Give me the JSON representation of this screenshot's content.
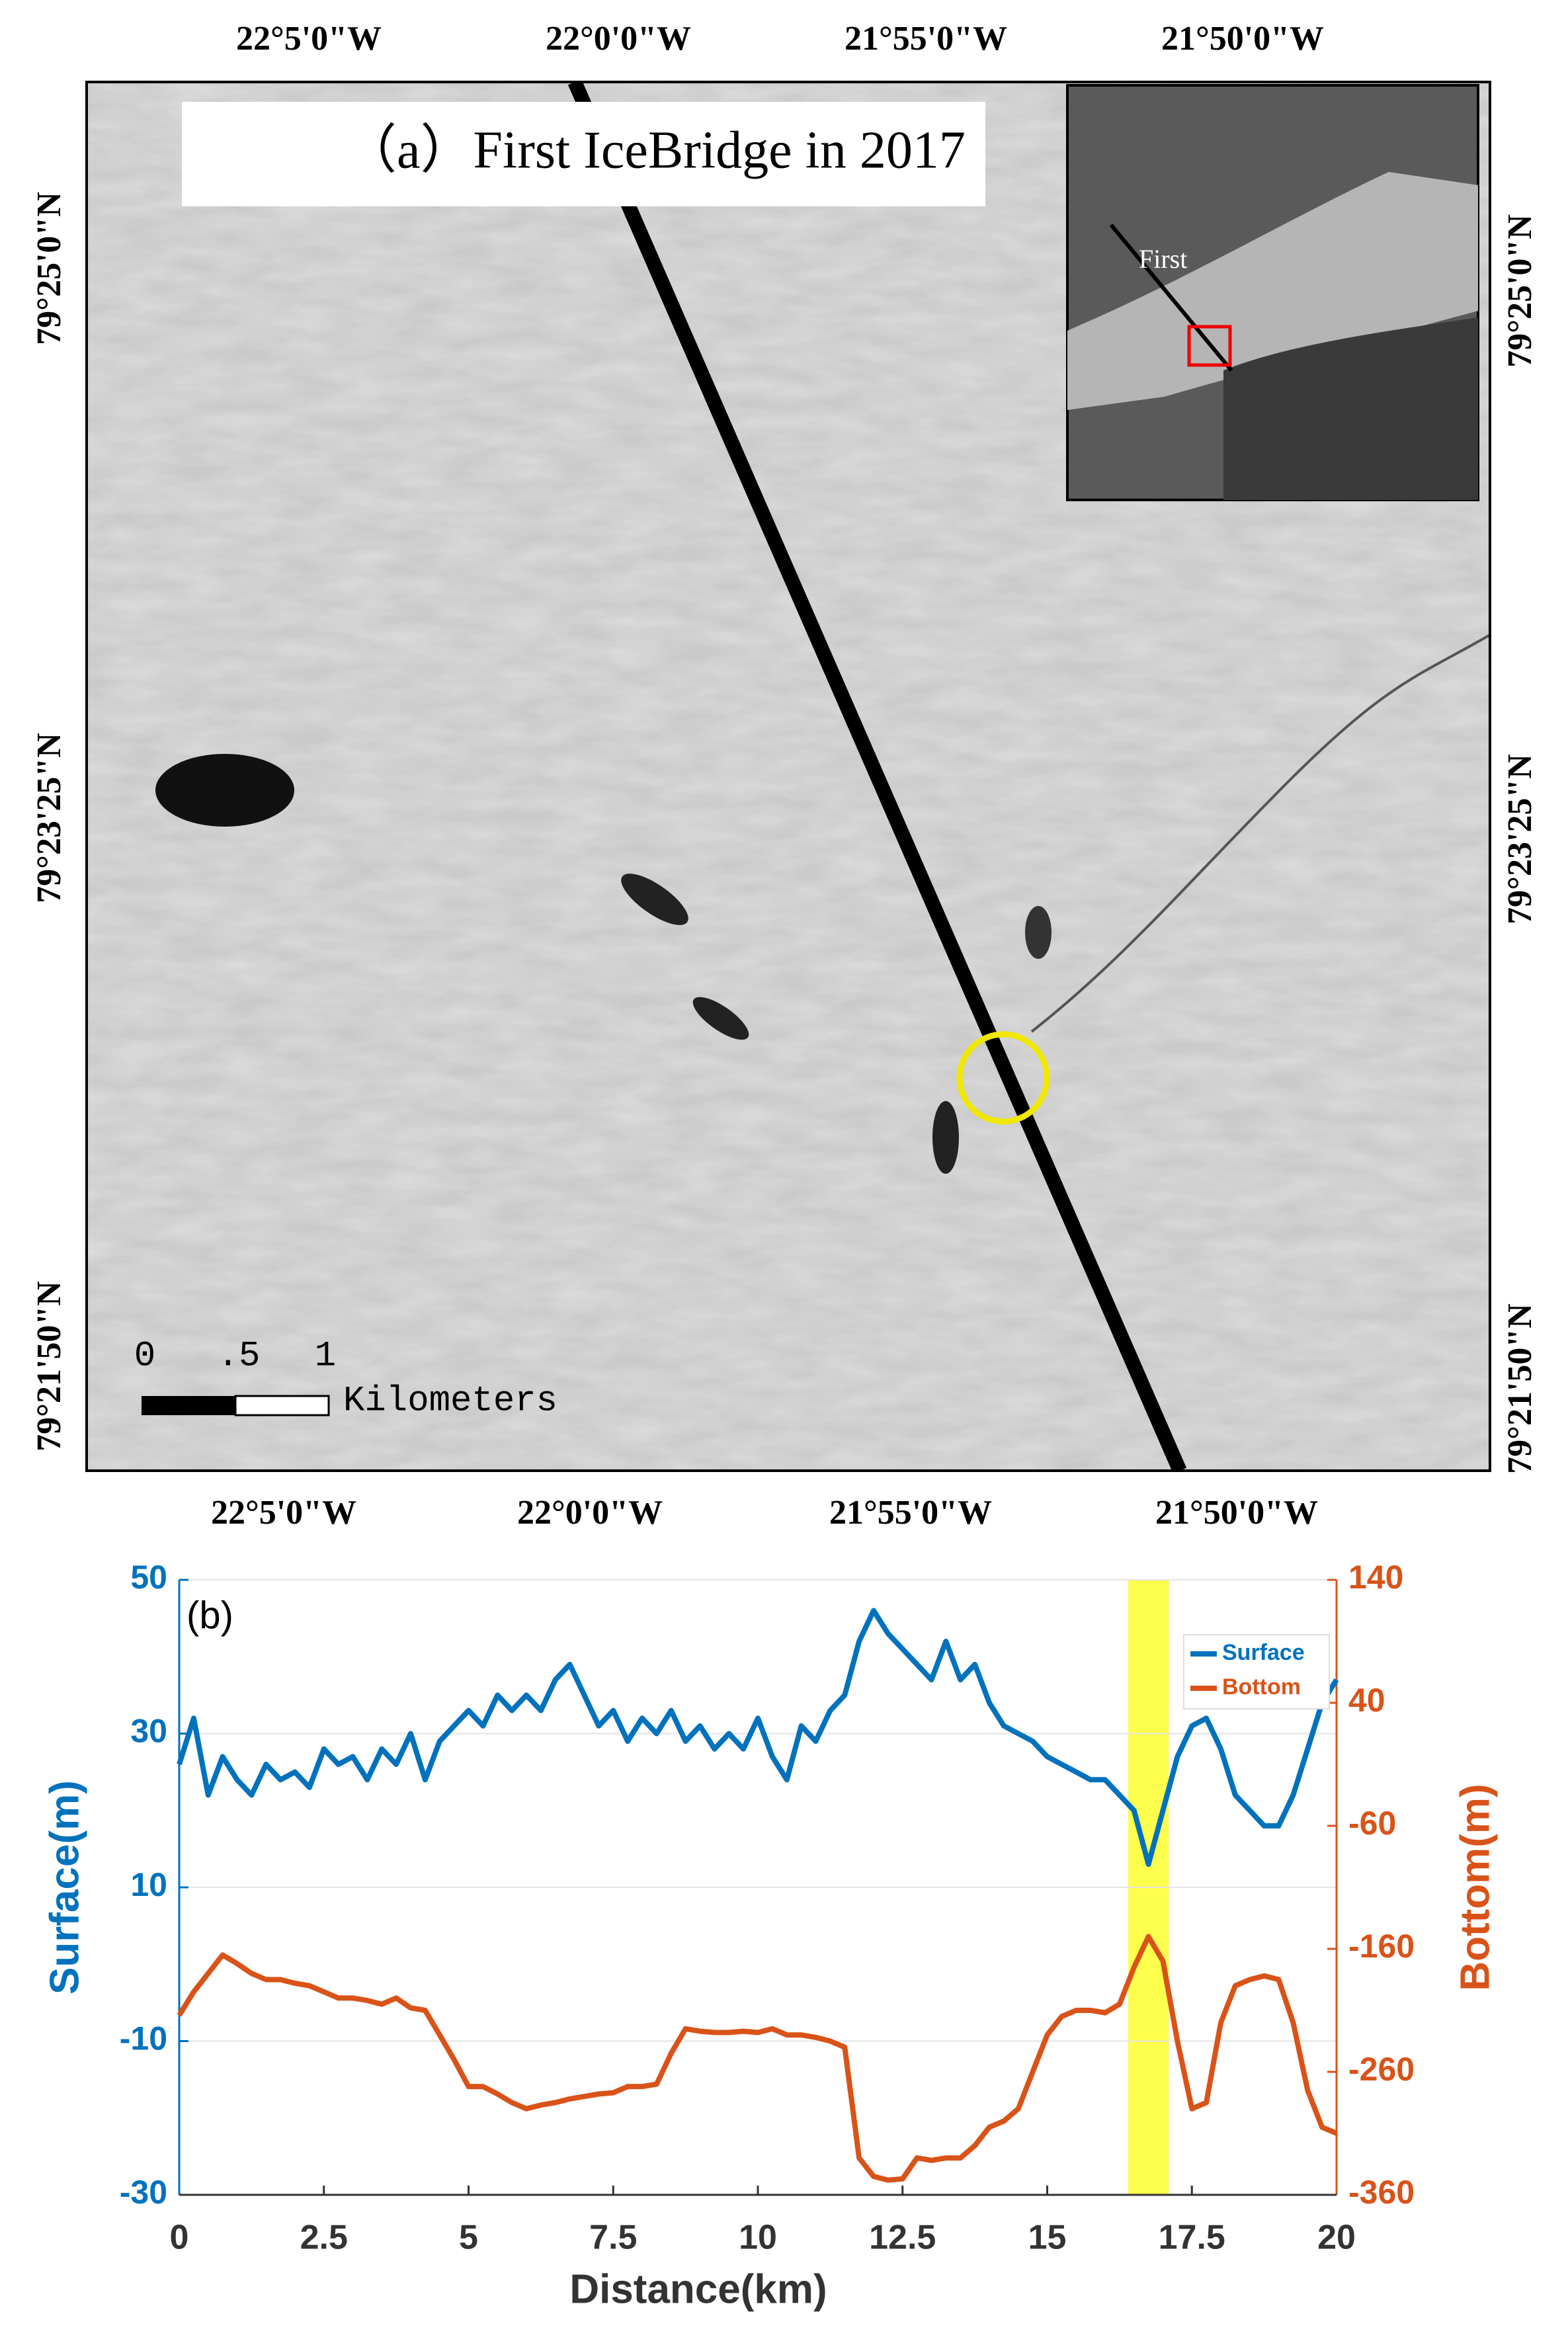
{
  "map": {
    "title": "（a）First IceBridge in 2017",
    "lon_labels": [
      "22°5'0\"W",
      "22°0'0\"W",
      "21°55'0\"W",
      "21°50'0\"W"
    ],
    "lat_labels": [
      "79°25'0\"N",
      "79°23'25\"N",
      "79°21'50\"N"
    ],
    "scale_labels": [
      "0",
      ".5",
      "1"
    ],
    "scale_unit": "Kilometers",
    "inset_label": "First"
  },
  "chart_data": {
    "type": "line",
    "panel_label": "(b)",
    "xlabel": "Distance(km)",
    "ylabel": "Surface(m)",
    "y2label": "Bottom(m)",
    "x": [
      0,
      0.25,
      0.5,
      0.75,
      1,
      1.25,
      1.5,
      1.75,
      2,
      2.25,
      2.5,
      2.75,
      3,
      3.25,
      3.5,
      3.75,
      4,
      4.25,
      4.5,
      4.75,
      5,
      5.25,
      5.5,
      5.75,
      6,
      6.25,
      6.5,
      6.75,
      7,
      7.25,
      7.5,
      7.75,
      8,
      8.25,
      8.5,
      8.75,
      9,
      9.25,
      9.5,
      9.75,
      10,
      10.25,
      10.5,
      10.75,
      11,
      11.25,
      11.5,
      11.75,
      12,
      12.25,
      12.5,
      12.75,
      13,
      13.25,
      13.5,
      13.75,
      14,
      14.25,
      14.5,
      14.75,
      15,
      15.25,
      15.5,
      15.75,
      16,
      16.25,
      16.5,
      16.75,
      17,
      17.25,
      17.5,
      17.75,
      18,
      18.25,
      18.5,
      18.75,
      19,
      19.25,
      19.5,
      19.75,
      20
    ],
    "xlim": [
      0,
      20
    ],
    "xticks": [
      0,
      2.5,
      5,
      7.5,
      10,
      12.5,
      15,
      17.5,
      20
    ],
    "ylim": [
      -30,
      50
    ],
    "yticks": [
      -30,
      -10,
      10,
      30,
      50
    ],
    "y2lim": [
      -360,
      140
    ],
    "y2ticks": [
      -360,
      -260,
      -160,
      -60,
      40,
      140
    ],
    "highlight": {
      "x": [
        16.4,
        17.1
      ],
      "color": "#ffff4d"
    },
    "series": [
      {
        "name": "Surface",
        "color": "#0072bd",
        "axis": "y",
        "values": [
          26,
          32,
          22,
          27,
          24,
          22,
          26,
          24,
          25,
          23,
          28,
          26,
          27,
          24,
          28,
          26,
          30,
          24,
          29,
          31,
          33,
          31,
          35,
          33,
          35,
          33,
          37,
          39,
          35,
          31,
          33,
          29,
          32,
          30,
          33,
          29,
          31,
          28,
          30,
          28,
          32,
          27,
          24,
          31,
          29,
          33,
          35,
          42,
          46,
          43,
          41,
          39,
          37,
          42,
          37,
          39,
          34,
          31,
          30,
          29,
          27,
          26,
          25,
          24,
          24,
          22,
          20,
          13,
          20,
          27,
          31,
          32,
          28,
          22,
          20,
          18,
          18,
          22,
          28,
          34,
          37
        ]
      },
      {
        "name": "Bottom",
        "color": "#d95319",
        "axis": "y2",
        "values": [
          -214,
          -195,
          -180,
          -165,
          -172,
          -180,
          -185,
          -185,
          -188,
          -190,
          -195,
          -200,
          -200,
          -202,
          -205,
          -200,
          -208,
          -210,
          -230,
          -250,
          -272,
          -272,
          -278,
          -285,
          -290,
          -287,
          -285,
          -282,
          -280,
          -278,
          -277,
          -272,
          -272,
          -270,
          -245,
          -225,
          -227,
          -228,
          -228,
          -227,
          -228,
          -225,
          -230,
          -230,
          -232,
          -235,
          -240,
          -330,
          -345,
          -348,
          -347,
          -330,
          -332,
          -330,
          -330,
          -320,
          -305,
          -300,
          -290,
          -260,
          -230,
          -215,
          -210,
          -210,
          -212,
          -205,
          -175,
          -150,
          -170,
          -235,
          -290,
          -285,
          -220,
          -190,
          -185,
          -182,
          -185,
          -220,
          -275,
          -305,
          -310
        ]
      }
    ]
  }
}
